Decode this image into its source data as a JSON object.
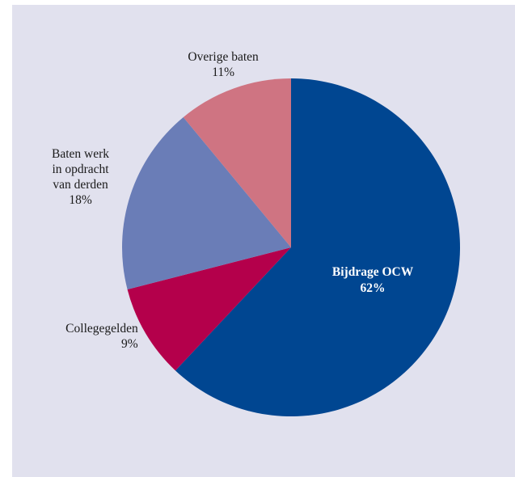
{
  "chart_data": {
    "type": "pie",
    "title": "",
    "slices": [
      {
        "label": "Bijdrage OCW",
        "value": 62,
        "display": "62%",
        "color": "#004691"
      },
      {
        "label": "Collegegelden",
        "value": 9,
        "display": "9%",
        "color": "#b4004b"
      },
      {
        "label": "Baten werk in opdracht van derden",
        "label_lines": [
          "Baten werk",
          "in opdracht",
          "van derden"
        ],
        "value": 18,
        "display": "18%",
        "color": "#6a7db7"
      },
      {
        "label": "Overige baten",
        "value": 11,
        "display": "11%",
        "color": "#cf7482"
      }
    ],
    "start_angle_deg": 0,
    "direction": "clockwise"
  }
}
